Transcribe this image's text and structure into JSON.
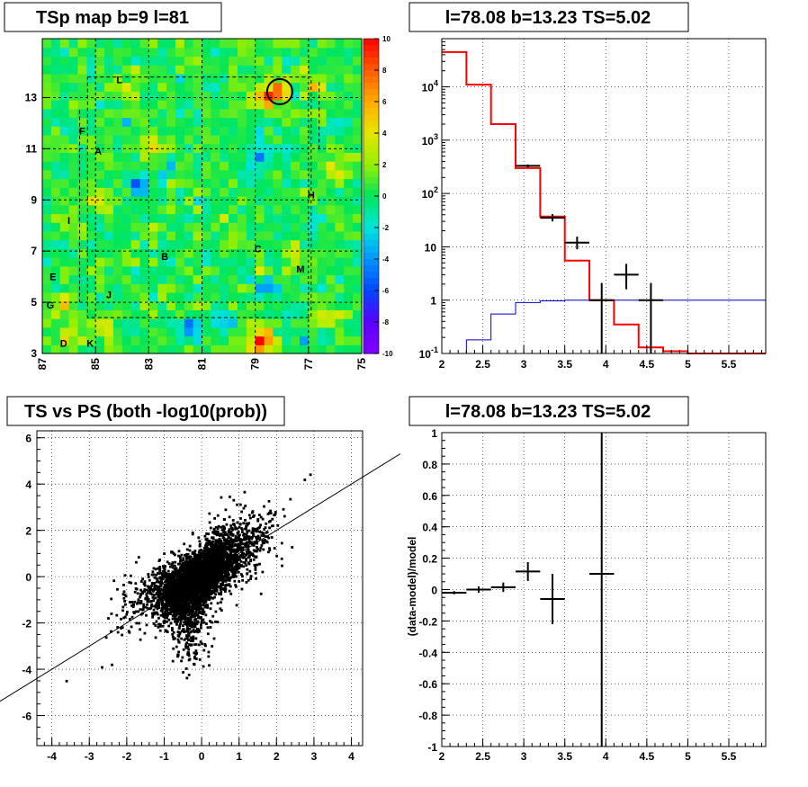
{
  "chart_data": [
    {
      "type": "heatmap",
      "title": "TSp map b=9 l=81",
      "x_ticks": [
        "87",
        "85",
        "83",
        "81",
        "79",
        "77",
        "75"
      ],
      "xlim": [
        87,
        75
      ],
      "y_ticks": [
        "3",
        "5",
        "7",
        "9",
        "11",
        "13"
      ],
      "ylim": [
        3,
        15.3
      ],
      "colorbar_ticks": [
        "10",
        "8",
        "6",
        "4",
        "2",
        "0",
        "-2",
        "-4",
        "-6",
        "-8",
        "-10"
      ],
      "zlim": [
        -10,
        10
      ],
      "background_value": 0.3,
      "hotspots": [
        {
          "l": 78.8,
          "b": 3.5,
          "v": 9.5
        },
        {
          "l": 78.2,
          "b": 13.3,
          "v": 7
        },
        {
          "l": 78.6,
          "b": 13.0,
          "v": 6
        },
        {
          "l": 86.2,
          "b": 3.5,
          "v": 4.5
        },
        {
          "l": 86.3,
          "b": 4.9,
          "v": 4
        },
        {
          "l": 82.9,
          "b": 11.2,
          "v": 4
        },
        {
          "l": 84.1,
          "b": 13.5,
          "v": 4
        },
        {
          "l": 84.8,
          "b": 8.9,
          "v": 4
        },
        {
          "l": 84.7,
          "b": 4.0,
          "v": 3.5
        },
        {
          "l": 76.7,
          "b": 13.5,
          "v": 4
        },
        {
          "l": 75.9,
          "b": 10.2,
          "v": 3.5
        },
        {
          "l": 76.2,
          "b": 4.5,
          "v": 3
        },
        {
          "l": 78.7,
          "b": 6.0,
          "v": 3
        },
        {
          "l": 77.5,
          "b": 7.0,
          "v": 2.5
        }
      ],
      "coldspots": [
        {
          "l": 78.6,
          "b": 5.7,
          "v": -6
        },
        {
          "l": 81.4,
          "b": 4.0,
          "v": -4
        },
        {
          "l": 83.4,
          "b": 9.6,
          "v": -4
        },
        {
          "l": 79.0,
          "b": 10.6,
          "v": -3.5
        },
        {
          "l": 76.6,
          "b": 8.2,
          "v": -3
        },
        {
          "l": 80.2,
          "b": 4.3,
          "v": -3.5
        },
        {
          "l": 76.0,
          "b": 12.0,
          "v": -2.5
        }
      ],
      "circle": {
        "l": 78.08,
        "b": 13.23
      },
      "region_labels": [
        {
          "text": "L",
          "l": 84.1,
          "b": 13.7
        },
        {
          "text": "F",
          "l": 85.5,
          "b": 11.7
        },
        {
          "text": "A",
          "l": 84.9,
          "b": 10.9
        },
        {
          "text": "H",
          "l": 76.9,
          "b": 9.2
        },
        {
          "text": "I",
          "l": 86.0,
          "b": 8.2
        },
        {
          "text": "C",
          "l": 78.9,
          "b": 7.1
        },
        {
          "text": "B",
          "l": 82.4,
          "b": 6.8
        },
        {
          "text": "M",
          "l": 77.3,
          "b": 6.3
        },
        {
          "text": "E",
          "l": 86.6,
          "b": 6.0
        },
        {
          "text": "J",
          "l": 84.5,
          "b": 5.3
        },
        {
          "text": "G",
          "l": 86.7,
          "b": 4.9
        },
        {
          "text": "D",
          "l": 86.2,
          "b": 3.4
        },
        {
          "text": "K",
          "l": 85.2,
          "b": 3.4
        }
      ]
    },
    {
      "type": "line",
      "title": "l=78.08 b=13.23 TS=5.02",
      "x_ticks": [
        "2",
        "2.5",
        "3",
        "3.5",
        "4",
        "4.5",
        "5",
        "5.5"
      ],
      "xlim": [
        2,
        5.95
      ],
      "y_ticks": [
        "10^-1",
        "1",
        "10",
        "10^2",
        "10^3",
        "10^4"
      ],
      "ylim": [
        0.1,
        80000
      ],
      "yscale": "log",
      "series": [
        {
          "name": "",
          "kind": "step",
          "color": "#ff0000",
          "edges": [
            2.0,
            2.3,
            2.6,
            2.9,
            3.2,
            3.5,
            3.8,
            4.1,
            4.4,
            4.7,
            5.0,
            5.3,
            5.6,
            5.95
          ],
          "values": [
            45000,
            11000,
            2000,
            300,
            37,
            5.5,
            1.0,
            0.35,
            0.13,
            0.11,
            0.1,
            0.1,
            0.1
          ]
        },
        {
          "name": "",
          "kind": "step",
          "color": "#0000cc",
          "edges": [
            2.0,
            2.3,
            2.6,
            2.9,
            3.2,
            3.5,
            3.8,
            4.1,
            4.4,
            4.7,
            5.0,
            5.3,
            5.6,
            5.95
          ],
          "values": [
            0.1,
            0.18,
            0.55,
            0.9,
            0.97,
            1.0,
            1.0,
            1.0,
            1.0,
            1.0,
            1.0,
            1.0,
            1.0
          ]
        },
        {
          "name": "",
          "kind": "errorbars",
          "color": "#000000",
          "points": [
            {
              "x": 3.05,
              "y": 330,
              "xerr": 0.15,
              "lo": 310,
              "hi": 350
            },
            {
              "x": 3.35,
              "y": 35,
              "xerr": 0.15,
              "lo": 30,
              "hi": 41
            },
            {
              "x": 3.65,
              "y": 12,
              "xerr": 0.15,
              "lo": 9,
              "hi": 15.5
            },
            {
              "x": 3.95,
              "y": 1.0,
              "xerr": 0.15,
              "lo": 0.1,
              "hi": 2.1
            },
            {
              "x": 4.25,
              "y": 3.0,
              "xerr": 0.15,
              "lo": 1.6,
              "hi": 4.8
            },
            {
              "x": 4.55,
              "y": 1.0,
              "xerr": 0.15,
              "lo": 0.1,
              "hi": 2.1
            }
          ]
        }
      ]
    },
    {
      "type": "scatter",
      "title": "TS vs PS (both -log10(prob))",
      "x_ticks": [
        "-4",
        "-3",
        "-2",
        "-1",
        "0",
        "1",
        "2",
        "3",
        "4"
      ],
      "xlim": [
        -4.4,
        4.3
      ],
      "y_ticks": [
        "-6",
        "-4",
        "-2",
        "0",
        "2",
        "4",
        "6"
      ],
      "ylim": [
        -7.3,
        6.3
      ],
      "fit_line": {
        "slope": 1.0,
        "intercept": 0.0
      },
      "points_generated_from": "seeded distribution approximating dense cloud"
    },
    {
      "type": "scatter",
      "title": "l=78.08 b=13.23 TS=5.02",
      "ylabel": "(data-model)/model",
      "x_ticks": [
        "2",
        "2.5",
        "3",
        "3.5",
        "4",
        "4.5",
        "5",
        "5.5"
      ],
      "xlim": [
        2,
        5.95
      ],
      "y_ticks": [
        "-1",
        "-0.8",
        "-0.6",
        "-0.4",
        "-0.2",
        "0",
        "0.2",
        "0.4",
        "0.6",
        "0.8",
        "1"
      ],
      "ylim": [
        -1,
        1
      ],
      "points": [
        {
          "x": 2.15,
          "y": -0.02,
          "xerr": 0.15,
          "yerr": 0.01
        },
        {
          "x": 2.45,
          "y": 0.0,
          "xerr": 0.15,
          "yerr": 0.02
        },
        {
          "x": 2.75,
          "y": 0.015,
          "xerr": 0.15,
          "yerr": 0.03
        },
        {
          "x": 3.05,
          "y": 0.115,
          "xerr": 0.15,
          "yerr": 0.06
        },
        {
          "x": 3.35,
          "y": -0.06,
          "xerr": 0.15,
          "yerr": 0.16
        },
        {
          "x": 3.95,
          "y": 0.1,
          "xerr": 0.15,
          "yerr": 1.1
        }
      ]
    }
  ]
}
